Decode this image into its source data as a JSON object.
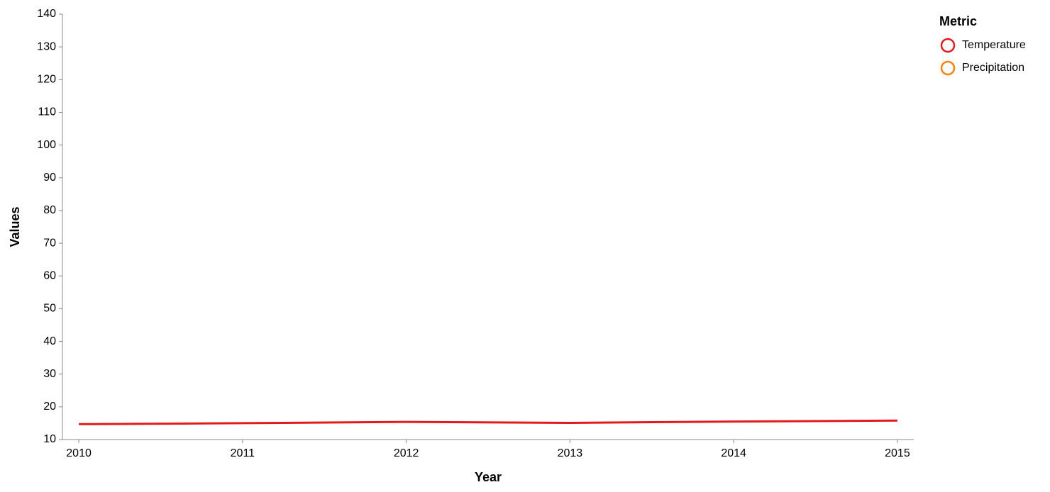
{
  "chart_data": {
    "type": "line",
    "x_label": "Year",
    "y_label": "Values",
    "legend_title": "Metric",
    "x": [
      2010,
      2011,
      2012,
      2013,
      2014,
      2015
    ],
    "series": [
      {
        "name": "Temperature",
        "color": "#e31a1c",
        "values": [
          14.7,
          15.0,
          15.4,
          15.1,
          15.5,
          15.8
        ]
      },
      {
        "name": "Precipitation",
        "color": "#ff7f0e",
        "values": [
          null,
          null,
          null,
          null,
          null,
          null
        ]
      }
    ],
    "xlim": [
      2009.9,
      2015.1
    ],
    "xticks": [
      2010,
      2011,
      2012,
      2013,
      2014,
      2015
    ],
    "ylim": [
      10,
      140
    ],
    "yticks": [
      10,
      20,
      30,
      40,
      50,
      60,
      70,
      80,
      90,
      100,
      110,
      120,
      130,
      140
    ],
    "grid": false,
    "legend": "top-right"
  }
}
